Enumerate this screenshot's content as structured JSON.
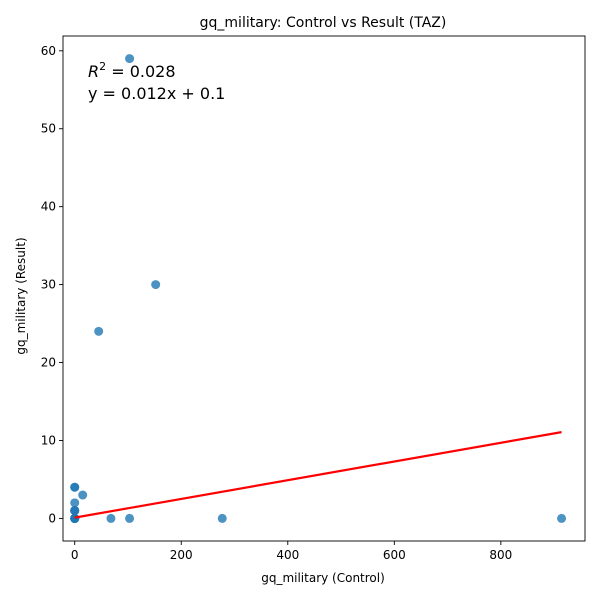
{
  "chart_data": {
    "type": "scatter",
    "title": "gq_military: Control vs Result (TAZ)",
    "xlabel": "gq_military (Control)",
    "ylabel": "gq_military (Result)",
    "xlim": [
      -22,
      958
    ],
    "ylim": [
      -2.9,
      61.9
    ],
    "xticks": [
      0,
      200,
      400,
      600,
      800
    ],
    "yticks": [
      0,
      10,
      20,
      30,
      40,
      50,
      60
    ],
    "grid": false,
    "point_color": "#1f77b4",
    "fit_color": "#ff0000",
    "points": [
      {
        "x": 0,
        "y": 0
      },
      {
        "x": 0,
        "y": 0
      },
      {
        "x": 0,
        "y": 0
      },
      {
        "x": 0,
        "y": 0
      },
      {
        "x": 0,
        "y": 0
      },
      {
        "x": 0,
        "y": 0
      },
      {
        "x": 0,
        "y": 0
      },
      {
        "x": 0,
        "y": 0
      },
      {
        "x": 0,
        "y": 1
      },
      {
        "x": 0,
        "y": 1
      },
      {
        "x": 0,
        "y": 1
      },
      {
        "x": 0,
        "y": 2
      },
      {
        "x": 0,
        "y": 4
      },
      {
        "x": 0,
        "y": 4
      },
      {
        "x": 15,
        "y": 3
      },
      {
        "x": 45,
        "y": 24
      },
      {
        "x": 68,
        "y": 0
      },
      {
        "x": 103,
        "y": 59
      },
      {
        "x": 103,
        "y": 0
      },
      {
        "x": 152,
        "y": 30
      },
      {
        "x": 277,
        "y": 0
      },
      {
        "x": 914,
        "y": 0
      }
    ],
    "fit_line": {
      "slope": 0.012,
      "intercept": 0.1,
      "x_start": 0,
      "x_end": 914
    },
    "annotation": {
      "r2_prefix": "R",
      "r2_sup": "2",
      "r2_value": " = 0.028",
      "equation": "y = 0.012x + 0.1"
    }
  }
}
